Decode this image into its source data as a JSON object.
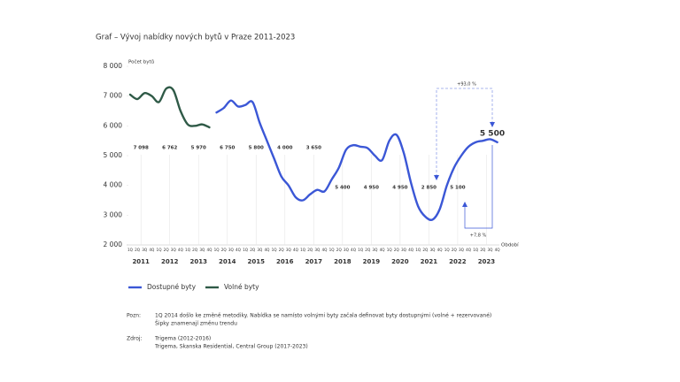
{
  "chart_data": {
    "type": "line",
    "title": "Graf – Vývoj nabídky nových bytů v Praze  2011-2023",
    "y_label": "Počet bytů",
    "x_label": "Období",
    "categories": [
      "1Q",
      "2Q",
      "3Q",
      "4Q",
      "1Q",
      "2Q",
      "3Q",
      "4Q",
      "1Q",
      "2Q",
      "3Q",
      "4Q",
      "1Q",
      "2Q",
      "3Q",
      "4Q",
      "1Q",
      "2Q",
      "3Q",
      "4Q",
      "1Q",
      "2Q",
      "3Q",
      "4Q",
      "1Q",
      "2Q",
      "3Q",
      "4Q",
      "1Q",
      "2Q",
      "3Q",
      "4Q",
      "1Q",
      "2Q",
      "3Q",
      "4Q",
      "1Q",
      "2Q",
      "3Q",
      "4Q",
      "1Q",
      "2Q",
      "3Q",
      "4Q",
      "1Q",
      "2Q",
      "3Q",
      "4Q",
      "1Q",
      "2Q",
      "3Q",
      "4Q"
    ],
    "years": [
      "2011",
      "2012",
      "2013",
      "2014",
      "2015",
      "2016",
      "2017",
      "2018",
      "2019",
      "2020",
      "2021",
      "2022",
      "2023"
    ],
    "ylim": [
      2000,
      8000
    ],
    "yticks": [
      {
        "value": 2000,
        "label": "2 000"
      },
      {
        "value": 3000,
        "label": "3 000"
      },
      {
        "value": 4000,
        "label": "4 000"
      },
      {
        "value": 5000,
        "label": "5 000"
      },
      {
        "value": 6000,
        "label": "6 000"
      },
      {
        "value": 7000,
        "label": "7 000"
      },
      {
        "value": 8000,
        "label": "8 000"
      }
    ],
    "series": [
      {
        "name": "Dostupné byty",
        "color": "#3b57d6",
        "values": [
          null,
          null,
          null,
          null,
          null,
          null,
          null,
          null,
          null,
          null,
          null,
          null,
          6450,
          6600,
          6850,
          6650,
          6700,
          6800,
          6100,
          5500,
          4900,
          4300,
          4000,
          3600,
          3500,
          3700,
          3850,
          3800,
          4200,
          4600,
          5200,
          5350,
          5300,
          5250,
          5000,
          4850,
          5500,
          5700,
          5100,
          4100,
          3300,
          2950,
          2850,
          3200,
          4000,
          4600,
          5000,
          5300,
          5450,
          5500,
          5550,
          5450
        ]
      },
      {
        "name": "Volné byty",
        "color": "#2f5a47",
        "values": [
          7050,
          6900,
          7100,
          7000,
          6800,
          7250,
          7200,
          6500,
          6050,
          6000,
          6050,
          5950,
          null,
          null,
          null,
          null,
          null,
          null,
          null,
          null,
          null,
          null,
          null,
          null,
          null,
          null,
          null,
          null,
          null,
          null,
          null,
          null,
          null,
          null,
          null,
          null,
          null,
          null,
          null,
          null,
          null,
          null,
          null,
          null,
          null,
          null,
          null,
          null,
          null,
          null,
          null,
          null
        ]
      }
    ],
    "annotations": {
      "green_labels": [
        "7 098",
        "6 762",
        "5 970"
      ],
      "blue_labels": [
        "6 750",
        "5 800",
        "4 000",
        "3 650",
        "5 400",
        "4 950",
        "4 950",
        "2 850",
        "5 100"
      ],
      "end_label": "5 500",
      "change_up": "+93,0 %",
      "change_small": "+7,8 %"
    },
    "notes": {
      "note_label": "Pozn:",
      "note_lines": [
        "1Q 2014 došlo ke změně metodiky. Nabídka se namísto volnými byty začala definovat byty dostupnými (volné + rezervované)",
        "Šipky znamenají změnu trendu"
      ],
      "source_label": "Zdroj:",
      "source_lines": [
        "Trigema (2012-2016)",
        "Trigema, Skanska Residential, Central Group (2017-2023)"
      ]
    }
  }
}
